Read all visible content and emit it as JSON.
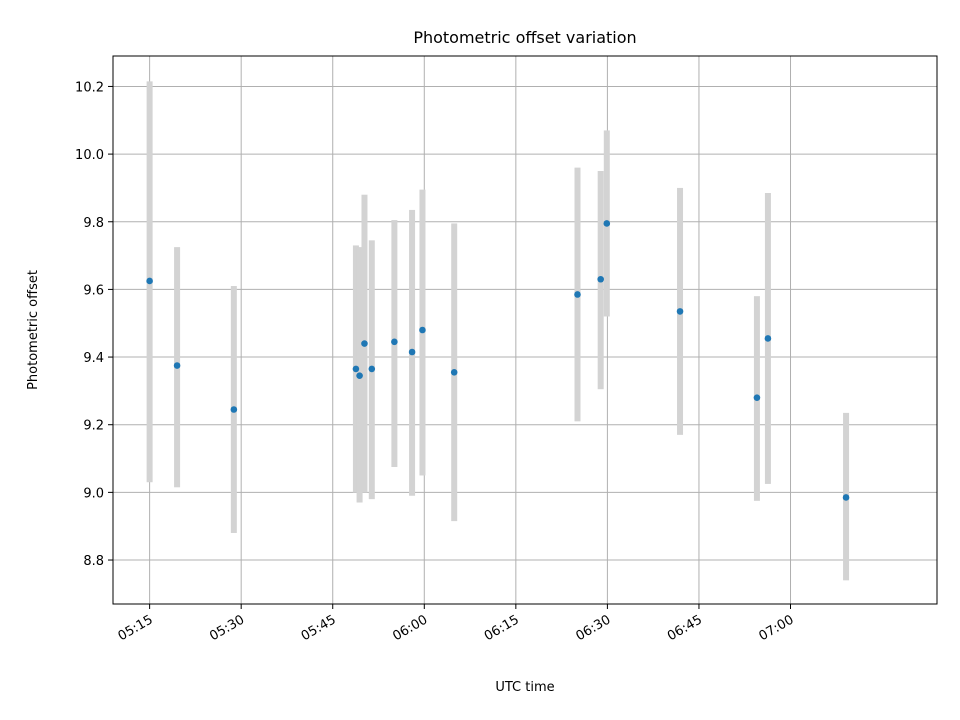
{
  "chart_data": {
    "type": "scatter",
    "title": "Photometric offset variation",
    "xlabel": "UTC time",
    "ylabel": "Photometric offset",
    "x_unit": "time (HH:MM UTC)",
    "xlim": [
      "05:09",
      "07:24"
    ],
    "ylim": [
      8.67,
      10.29
    ],
    "grid": true,
    "x_ticks": [
      "05:15",
      "05:30",
      "05:45",
      "06:00",
      "06:15",
      "06:30",
      "06:45",
      "07:00"
    ],
    "y_ticks": [
      8.8,
      9.0,
      9.2,
      9.4,
      9.6,
      9.8,
      10.0,
      10.2
    ],
    "x_tick_rotation_deg": 30,
    "colors": {
      "point": "#1f77b4",
      "errorbar": "#d3d3d3",
      "grid": "#b0b0b0"
    },
    "series": [
      {
        "points": [
          {
            "x": "05:15:00",
            "y": 9.625,
            "ylow": 9.03,
            "yhigh": 10.215
          },
          {
            "x": "05:19:30",
            "y": 9.375,
            "ylow": 9.015,
            "yhigh": 9.725
          },
          {
            "x": "05:28:48",
            "y": 9.245,
            "ylow": 8.88,
            "yhigh": 9.61
          },
          {
            "x": "05:48:48",
            "y": 9.365,
            "ylow": 9.0,
            "yhigh": 9.73
          },
          {
            "x": "05:49:24",
            "y": 9.345,
            "ylow": 8.97,
            "yhigh": 9.725
          },
          {
            "x": "05:50:12",
            "y": 9.44,
            "ylow": 9.0,
            "yhigh": 9.88
          },
          {
            "x": "05:51:24",
            "y": 9.365,
            "ylow": 8.98,
            "yhigh": 9.745
          },
          {
            "x": "05:55:06",
            "y": 9.445,
            "ylow": 9.075,
            "yhigh": 9.805
          },
          {
            "x": "05:58:00",
            "y": 9.415,
            "ylow": 8.99,
            "yhigh": 9.835
          },
          {
            "x": "05:59:42",
            "y": 9.48,
            "ylow": 9.05,
            "yhigh": 9.895
          },
          {
            "x": "06:04:54",
            "y": 9.355,
            "ylow": 8.915,
            "yhigh": 9.795
          },
          {
            "x": "06:25:06",
            "y": 9.585,
            "ylow": 9.21,
            "yhigh": 9.96
          },
          {
            "x": "06:28:54",
            "y": 9.63,
            "ylow": 9.305,
            "yhigh": 9.95
          },
          {
            "x": "06:29:54",
            "y": 9.795,
            "ylow": 9.52,
            "yhigh": 10.07
          },
          {
            "x": "06:41:54",
            "y": 9.535,
            "ylow": 9.17,
            "yhigh": 9.9
          },
          {
            "x": "06:54:30",
            "y": 9.28,
            "ylow": 8.975,
            "yhigh": 9.58
          },
          {
            "x": "06:56:18",
            "y": 9.455,
            "ylow": 9.025,
            "yhigh": 9.885
          },
          {
            "x": "07:09:06",
            "y": 8.985,
            "ylow": 8.74,
            "yhigh": 9.235
          }
        ]
      }
    ]
  }
}
